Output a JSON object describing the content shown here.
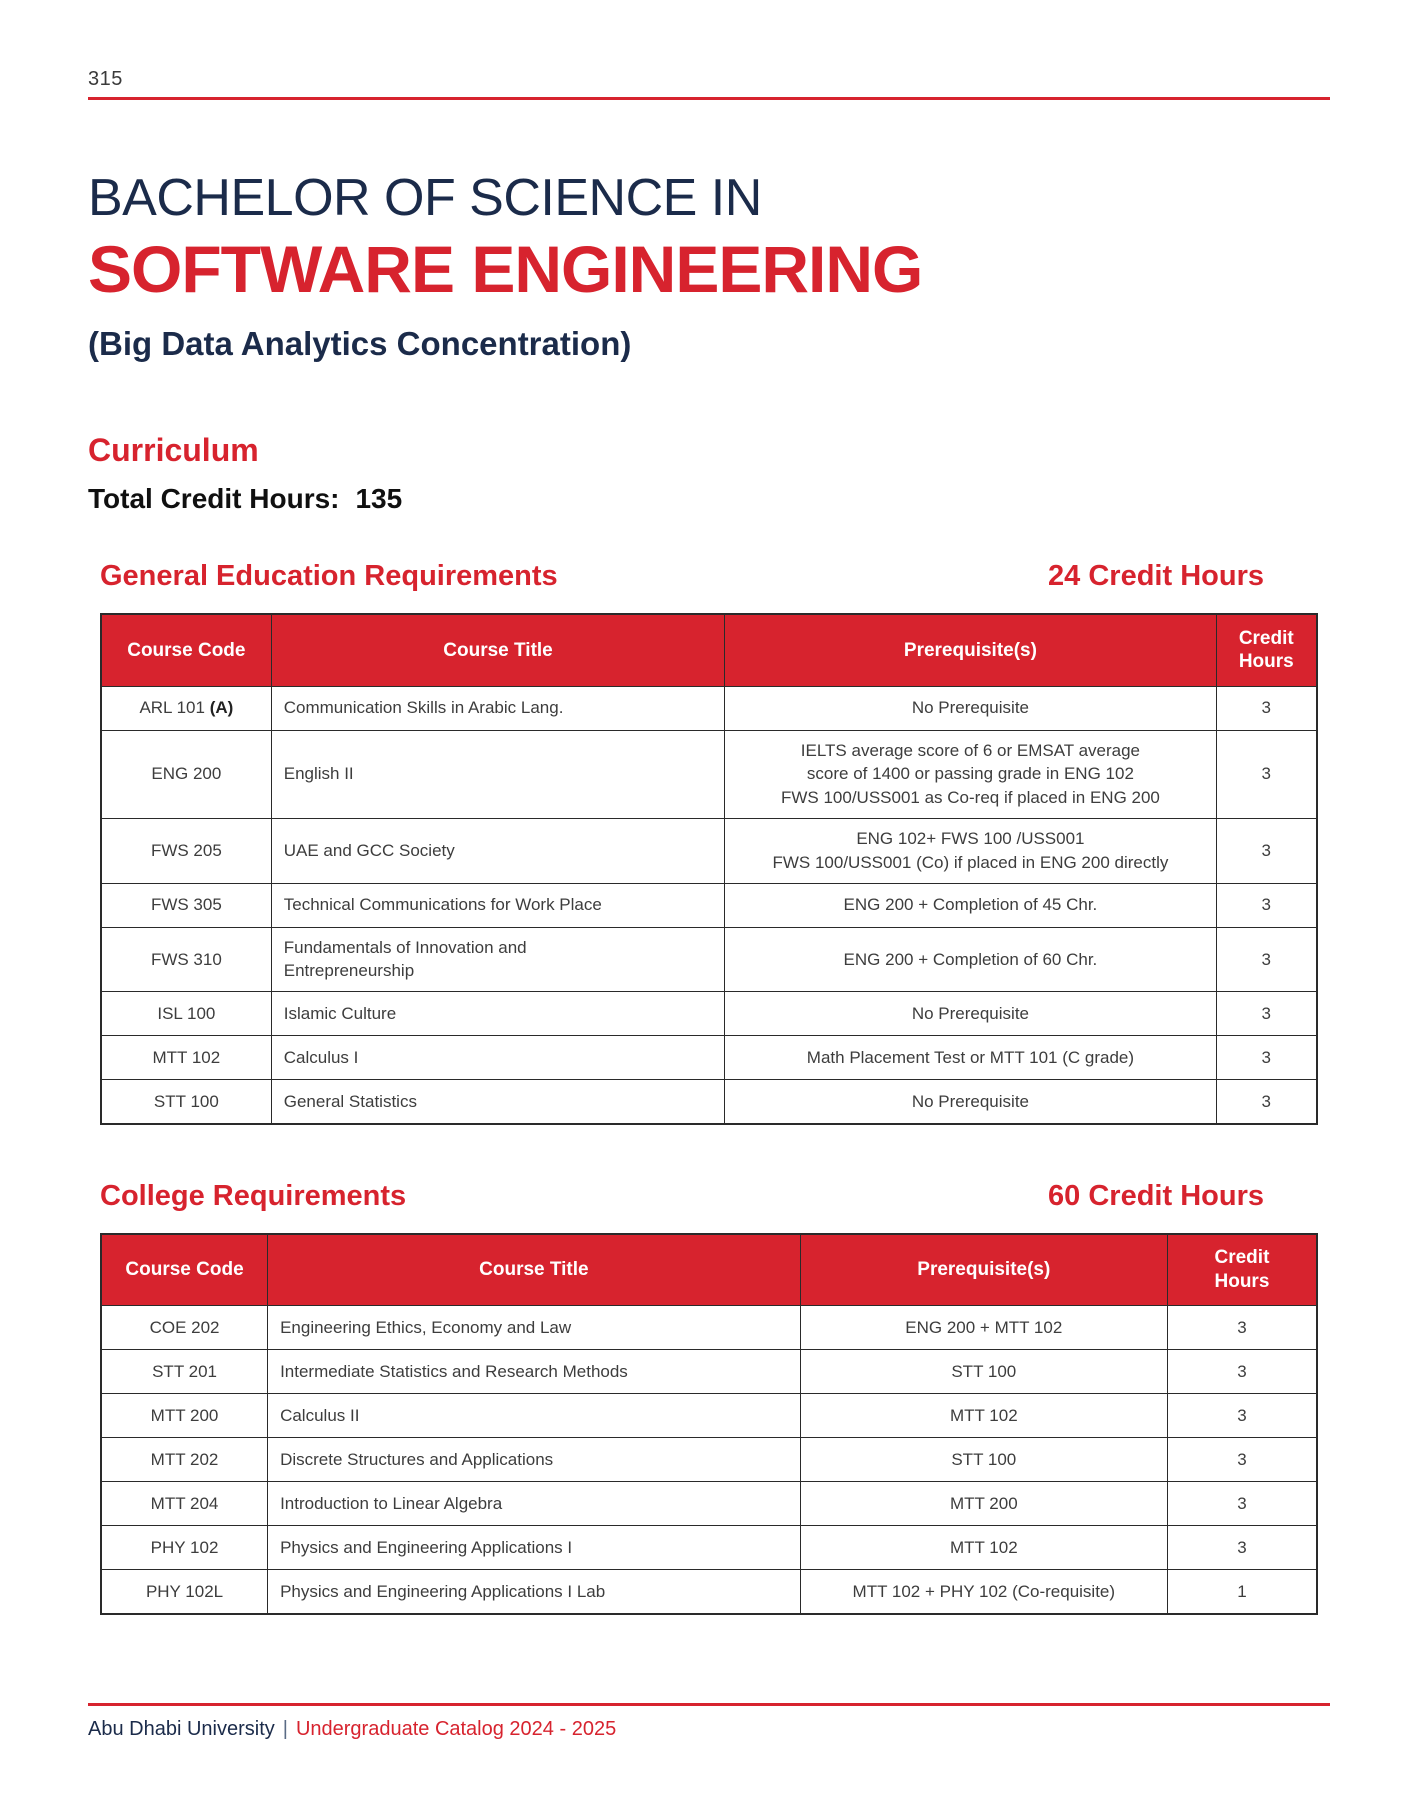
{
  "page": {
    "number": "315"
  },
  "header": {
    "degree_prefix": "BACHELOR OF SCIENCE IN",
    "program_name": "SOFTWARE ENGINEERING",
    "concentration": "(Big Data Analytics Concentration)"
  },
  "curriculum": {
    "title": "Curriculum",
    "total_label": "Total Credit Hours:",
    "total_value": "135"
  },
  "sections": [
    {
      "title": "General Education Requirements",
      "credits": "24 Credit Hours",
      "columns": [
        "Course Code",
        "Course Title",
        "Prerequisite(s)",
        "Credit\nHours"
      ],
      "rows": [
        {
          "code": "ARL 101",
          "code_note": "(A)",
          "title": "Communication Skills in Arabic Lang.",
          "prereq": "No Prerequisite",
          "credits": "3"
        },
        {
          "code": "ENG 200",
          "title": "English II",
          "prereq": "IELTS average score of 6 or EMSAT average\nscore of 1400 or passing grade in ENG 102\nFWS 100/USS001 as Co-req if placed in ENG 200",
          "credits": "3"
        },
        {
          "code": "FWS 205",
          "title": "UAE and GCC Society",
          "prereq": "ENG 102+ FWS 100 /USS001\nFWS 100/USS001 (Co) if placed in ENG 200 directly",
          "credits": "3"
        },
        {
          "code": "FWS 305",
          "title": "Technical Communications for Work Place",
          "prereq": "ENG 200 + Completion of 45 Chr.",
          "credits": "3"
        },
        {
          "code": "FWS 310",
          "title": "Fundamentals of Innovation and\nEntrepreneurship",
          "prereq": "ENG 200 + Completion of 60 Chr.",
          "credits": "3"
        },
        {
          "code": "ISL 100",
          "title": "Islamic Culture",
          "prereq": "No Prerequisite",
          "credits": "3"
        },
        {
          "code": "MTT 102",
          "title": "Calculus I",
          "prereq": "Math Placement Test or MTT 101 (C grade)",
          "credits": "3"
        },
        {
          "code": "STT 100",
          "title": "General Statistics",
          "prereq": "No Prerequisite",
          "credits": "3"
        }
      ]
    },
    {
      "title": "College Requirements",
      "credits": "60 Credit Hours",
      "columns": [
        "Course Code",
        "Course Title",
        "Prerequisite(s)",
        "Credit\nHours"
      ],
      "rows": [
        {
          "code": "COE 202",
          "title": "Engineering Ethics, Economy and Law",
          "prereq": "ENG 200 + MTT 102",
          "credits": "3"
        },
        {
          "code": "STT 201",
          "title": "Intermediate Statistics and Research Methods",
          "prereq": "STT 100",
          "credits": "3"
        },
        {
          "code": "MTT 200",
          "title": "Calculus II",
          "prereq": "MTT 102",
          "credits": "3"
        },
        {
          "code": "MTT 202",
          "title": "Discrete Structures and Applications",
          "prereq": "STT 100",
          "credits": "3"
        },
        {
          "code": "MTT 204",
          "title": "Introduction to Linear Algebra",
          "prereq": "MTT 200",
          "credits": "3"
        },
        {
          "code": "PHY 102",
          "title": "Physics and Engineering Applications I",
          "prereq": "MTT 102",
          "credits": "3"
        },
        {
          "code": "PHY 102L",
          "title": "Physics and Engineering Applications I Lab",
          "prereq": "MTT 102 + PHY 102 (Co-requisite)",
          "credits": "1"
        }
      ]
    }
  ],
  "footer": {
    "university": "Abu Dhabi University",
    "separator": "|",
    "catalog": "Undergraduate Catalog 2024 - 2025"
  },
  "colors": {
    "accent_red": "#d7232e",
    "navy": "#1b2b4a",
    "table_border": "#2a2a2a",
    "body_text": "#3d3d3d"
  }
}
